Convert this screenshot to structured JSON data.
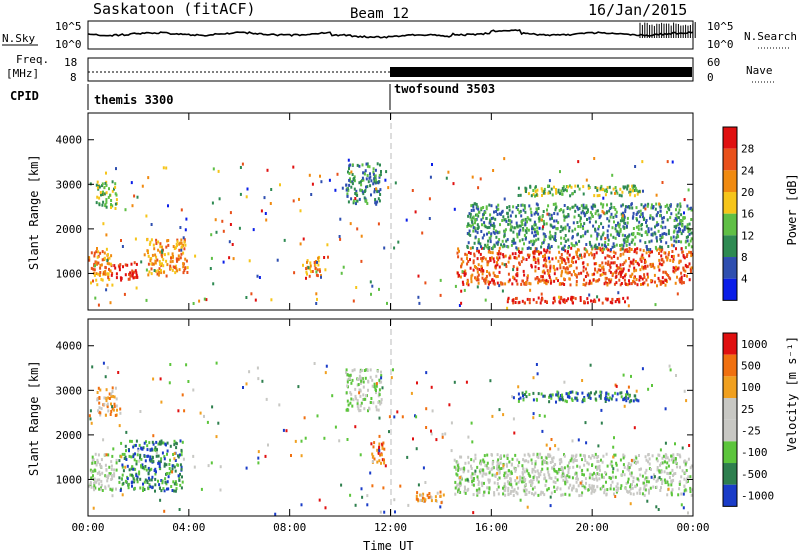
{
  "header": {
    "station": "Saskatoon (fitACF)",
    "beam": "Beam 12",
    "date": "16/Jan/2015"
  },
  "top_panels": {
    "nsky_label": "N.Sky",
    "nsearch_label": "N.Search",
    "noise_ticks": [
      "10^5",
      "10^0"
    ],
    "freq_label_1": "Freq.",
    "freq_label_2": "[MHz]",
    "freq_ticks": [
      "18",
      "8"
    ],
    "nave_label": "Nave",
    "nave_ticks": [
      "60",
      "0"
    ],
    "cpid_label": "CPID",
    "cpid_1": "themis 3300",
    "cpid_2": "twofsound 3503"
  },
  "colors": {
    "scatter_blue": "#1f3fd0",
    "scatter_green": "#3a8f4a",
    "scatter_orange": "#ee8a10",
    "scatter_red": "#e0101a",
    "ground_gray": "#c4c4c0"
  },
  "chart_data": [
    {
      "type": "heatmap",
      "title": "",
      "xlabel": "Time UT",
      "ylabel": "Slant Range [km]",
      "x_ticks": [
        "00:00",
        "04:00",
        "08:00",
        "12:00",
        "16:00",
        "20:00",
        "00:00"
      ],
      "xlim_hours": [
        0,
        24
      ],
      "y_ticks": [
        1000,
        2000,
        3000,
        4000
      ],
      "ylim_km": [
        180,
        4600
      ],
      "colorbar": {
        "label": "Power [dB]",
        "ticks": [
          "4",
          "8",
          "12",
          "16",
          "20",
          "24",
          "28"
        ],
        "colors": [
          "#0a1ee8",
          "#2f4fb0",
          "#2e8a52",
          "#5fbf45",
          "#f6c51a",
          "#f08a10",
          "#e8501a",
          "#e01010"
        ]
      },
      "regions": [
        {
          "t0": 0.0,
          "t1": 1.0,
          "r0": 700,
          "r1": 1600,
          "level": 5
        },
        {
          "t0": 1.0,
          "t1": 2.0,
          "r0": 800,
          "r1": 1250,
          "level": 7
        },
        {
          "t0": 0.3,
          "t1": 1.2,
          "r0": 2400,
          "r1": 3100,
          "level": 3
        },
        {
          "t0": 2.3,
          "t1": 4.0,
          "r0": 900,
          "r1": 1800,
          "level": 5
        },
        {
          "t0": 8.6,
          "t1": 9.3,
          "r0": 900,
          "r1": 1400,
          "level": 5
        },
        {
          "t0": 10.2,
          "t1": 11.7,
          "r0": 2500,
          "r1": 3500,
          "level": 2
        },
        {
          "t0": 14.6,
          "t1": 24.0,
          "r0": 700,
          "r1": 1600,
          "level": 6
        },
        {
          "t0": 15.0,
          "t1": 24.0,
          "r0": 1500,
          "r1": 2600,
          "level": 2
        },
        {
          "t0": 16.5,
          "t1": 21.5,
          "r0": 300,
          "r1": 500,
          "level": 7
        },
        {
          "t0": 17.0,
          "t1": 22.0,
          "r0": 2700,
          "r1": 3000,
          "level": 3
        }
      ]
    },
    {
      "type": "heatmap",
      "title": "",
      "xlabel": "Time UT",
      "ylabel": "Slant Range [km]",
      "x_ticks": [
        "00:00",
        "04:00",
        "08:00",
        "12:00",
        "16:00",
        "20:00",
        "00:00"
      ],
      "xlim_hours": [
        0,
        24
      ],
      "y_ticks": [
        1000,
        2000,
        3000,
        4000
      ],
      "ylim_km": [
        180,
        4600
      ],
      "colorbar": {
        "label": "Velocity [m s⁻¹]",
        "ticks": [
          "1000",
          "500",
          "100",
          "25",
          "-25",
          "-100",
          "-500",
          "-1000"
        ],
        "colors": [
          "#1a3cc8",
          "#2e7f4e",
          "#5cc53c",
          "#c8c8c4",
          "#c8c8c4",
          "#f0a020",
          "#f07010",
          "#e01010"
        ]
      },
      "regions": [
        {
          "t0": 0.0,
          "t1": 1.2,
          "r0": 700,
          "r1": 1600,
          "level": 3
        },
        {
          "t0": 1.2,
          "t1": 3.8,
          "r0": 700,
          "r1": 1900,
          "level": 1
        },
        {
          "t0": 0.3,
          "t1": 1.2,
          "r0": 2400,
          "r1": 3100,
          "level": 5
        },
        {
          "t0": 10.2,
          "t1": 11.7,
          "r0": 2500,
          "r1": 3500,
          "level": 3
        },
        {
          "t0": 14.5,
          "t1": 24.0,
          "r0": 600,
          "r1": 1600,
          "level": 3
        },
        {
          "t0": 13.0,
          "t1": 14.2,
          "r0": 450,
          "r1": 750,
          "level": 5
        },
        {
          "t0": 11.2,
          "t1": 11.8,
          "r0": 1300,
          "r1": 1900,
          "level": 6
        },
        {
          "t0": 17.0,
          "t1": 22.0,
          "r0": 2700,
          "r1": 3000,
          "level": 1
        }
      ]
    }
  ]
}
